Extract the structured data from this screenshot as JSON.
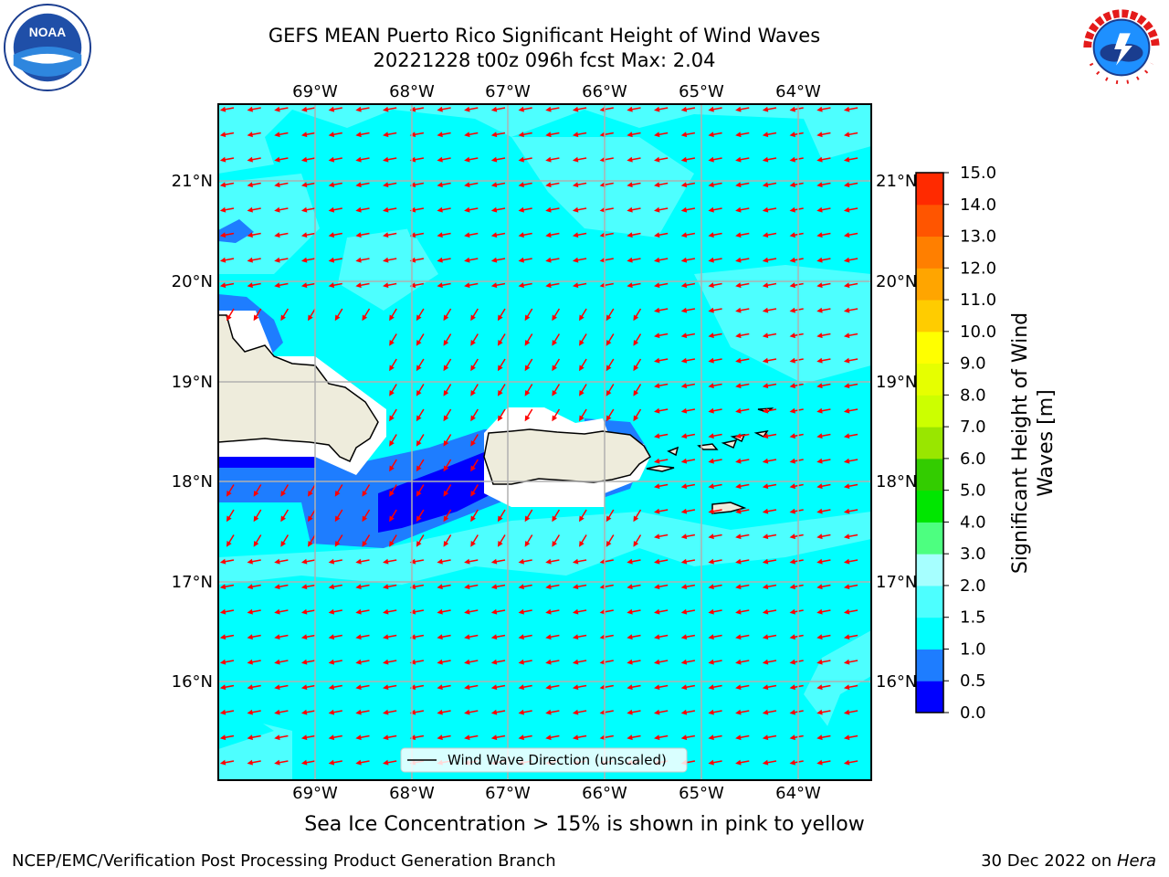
{
  "title": {
    "line1": "GEFS MEAN Puerto Rico Significant Height of Wind Waves",
    "line2": "20221228 t00z 096h fcst   Max: 2.04"
  },
  "map": {
    "lon_labels": [
      "69°W",
      "68°W",
      "67°W",
      "66°W",
      "65°W",
      "64°W"
    ],
    "lat_labels": [
      "21°N",
      "20°N",
      "19°N",
      "18°N",
      "17°N",
      "16°N"
    ],
    "legend_text": "Wind Wave Direction (unscaled)",
    "arrow_color": "#ff0000",
    "land_color": "#eeecdc",
    "ocean_color": "#00ffff"
  },
  "colorbar": {
    "label_line1": "Significant Height of Wind",
    "label_line2": "Waves [m]",
    "ticks": [
      "0.0",
      "0.5",
      "1.0",
      "1.5",
      "2.0",
      "3.0",
      "4.0",
      "5.0",
      "6.0",
      "7.0",
      "8.0",
      "9.0",
      "10.0",
      "11.0",
      "12.0",
      "13.0",
      "14.0",
      "15.0"
    ],
    "colors": [
      "#0000ff",
      "#1e7dff",
      "#00ffff",
      "#4dffff",
      "#a6ffff",
      "#4dff80",
      "#00e600",
      "#33cc00",
      "#99e600",
      "#ccff00",
      "#e6ff00",
      "#ffff00",
      "#ffcc00",
      "#ffa500",
      "#ff7f00",
      "#ff5500",
      "#ff2a00"
    ]
  },
  "ice_note": "Sea Ice Concentration > 15% is shown in pink to yellow",
  "footer": {
    "left": "NCEP/EMC/Verification Post Processing Product Generation Branch",
    "right_prefix": "30 Dec 2022 on ",
    "right_machine": "Hera"
  }
}
